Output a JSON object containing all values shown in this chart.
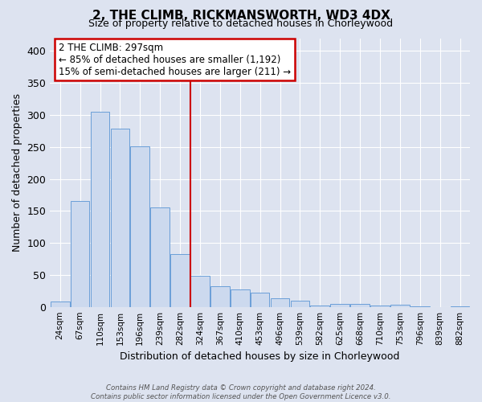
{
  "title": "2, THE CLIMB, RICKMANSWORTH, WD3 4DX",
  "subtitle": "Size of property relative to detached houses in Chorleywood",
  "xlabel": "Distribution of detached houses by size in Chorleywood",
  "ylabel": "Number of detached properties",
  "bar_labels": [
    "24sqm",
    "67sqm",
    "110sqm",
    "153sqm",
    "196sqm",
    "239sqm",
    "282sqm",
    "324sqm",
    "367sqm",
    "410sqm",
    "453sqm",
    "496sqm",
    "539sqm",
    "582sqm",
    "625sqm",
    "668sqm",
    "710sqm",
    "753sqm",
    "796sqm",
    "839sqm",
    "882sqm"
  ],
  "bar_values": [
    9,
    165,
    305,
    279,
    251,
    156,
    82,
    49,
    32,
    27,
    22,
    13,
    10,
    2,
    5,
    5,
    2,
    3,
    1,
    0,
    1
  ],
  "bar_color": "#ccd9ee",
  "bar_edge_color": "#6a9fd8",
  "vline_x": 6.5,
  "vline_color": "#cc0000",
  "annotation_title": "2 THE CLIMB: 297sqm",
  "annotation_line1": "← 85% of detached houses are smaller (1,192)",
  "annotation_line2": "15% of semi-detached houses are larger (211) →",
  "annotation_box_color": "#ffffff",
  "annotation_box_edge_color": "#cc0000",
  "ylim": [
    0,
    420
  ],
  "yticks": [
    0,
    50,
    100,
    150,
    200,
    250,
    300,
    350,
    400
  ],
  "bg_color": "#dde3f0",
  "footer1": "Contains HM Land Registry data © Crown copyright and database right 2024.",
  "footer2": "Contains public sector information licensed under the Open Government Licence v3.0."
}
